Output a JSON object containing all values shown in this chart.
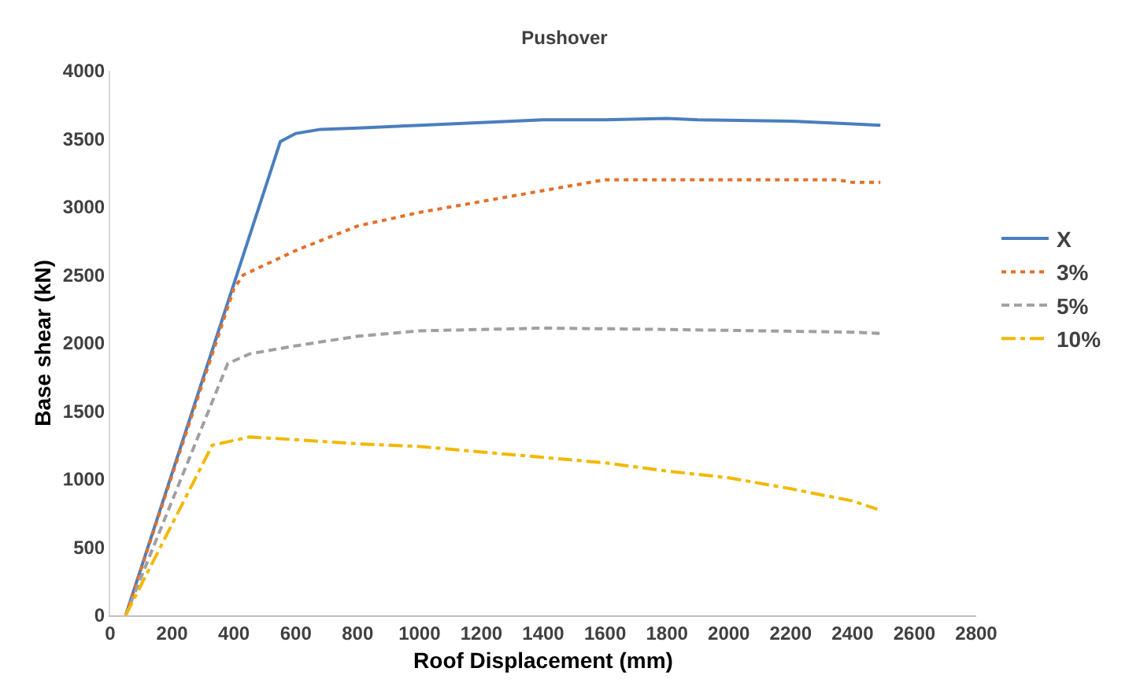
{
  "chart_data": {
    "type": "line",
    "title": "Pushover",
    "xlabel": "Roof Displacement (mm)",
    "ylabel": "Base shear (kN)",
    "xlim": [
      0,
      2800
    ],
    "xticks": [
      0,
      200,
      400,
      600,
      800,
      1000,
      1200,
      1400,
      1600,
      1800,
      2000,
      2200,
      2400,
      2600,
      2800
    ],
    "ylim": [
      0,
      4000
    ],
    "yticks": [
      0,
      500,
      1000,
      1500,
      2000,
      2500,
      3000,
      3500,
      4000
    ],
    "grid": false,
    "legend": "right",
    "marker": "none",
    "series": [
      {
        "name": "X",
        "color": "#4a7ebf",
        "line_style": "solid",
        "x": [
          50,
          550,
          600,
          680,
          800,
          1000,
          1200,
          1400,
          1600,
          1800,
          1900,
          2200,
          2400,
          2490
        ],
        "values": [
          0,
          3480,
          3540,
          3570,
          3580,
          3600,
          3620,
          3640,
          3640,
          3650,
          3640,
          3630,
          3610,
          3600
        ]
      },
      {
        "name": "3%",
        "color": "#e2702a",
        "line_style": "dotted",
        "x": [
          50,
          400,
          430,
          600,
          800,
          1000,
          1200,
          1400,
          1600,
          2000,
          2350,
          2400,
          2490
        ],
        "values": [
          0,
          2400,
          2500,
          2680,
          2860,
          2960,
          3040,
          3120,
          3200,
          3200,
          3200,
          3180,
          3180
        ]
      },
      {
        "name": "5%",
        "color": "#a0a0a0",
        "line_style": "dashed",
        "x": [
          50,
          380,
          450,
          600,
          800,
          1000,
          1400,
          1800,
          2400,
          2490
        ],
        "values": [
          0,
          1850,
          1920,
          1980,
          2050,
          2090,
          2110,
          2100,
          2080,
          2070
        ]
      },
      {
        "name": "10%",
        "color": "#f2b800",
        "line_style": "dashdot",
        "x": [
          50,
          330,
          450,
          600,
          800,
          1000,
          1200,
          1400,
          1600,
          1800,
          2000,
          2200,
          2400,
          2480
        ],
        "values": [
          0,
          1250,
          1310,
          1290,
          1260,
          1240,
          1200,
          1160,
          1120,
          1060,
          1010,
          930,
          840,
          780
        ]
      }
    ]
  }
}
